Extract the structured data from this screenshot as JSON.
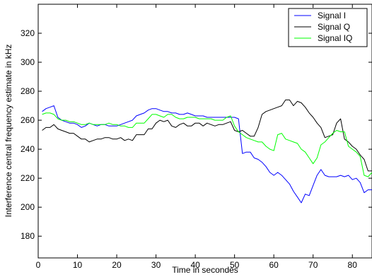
{
  "chart_data": {
    "type": "line",
    "title": "",
    "xlabel": "Time in secondes",
    "ylabel": "Interference central frequency estimate in kHz",
    "xlim": [
      0,
      85
    ],
    "ylim": [
      165,
      340
    ],
    "xticks": [
      0,
      10,
      20,
      30,
      40,
      50,
      60,
      70,
      80
    ],
    "yticks": [
      180,
      200,
      220,
      240,
      260,
      280,
      300,
      320
    ],
    "grid": false,
    "legend_position": "top-right",
    "series": [
      {
        "name": "Signal I",
        "color": "#0000ff",
        "x": [
          1,
          2,
          3,
          4,
          5,
          6,
          7,
          8,
          9,
          10,
          11,
          12,
          13,
          14,
          15,
          16,
          17,
          18,
          19,
          20,
          21,
          22,
          23,
          24,
          25,
          26,
          27,
          28,
          29,
          30,
          31,
          32,
          33,
          34,
          35,
          36,
          37,
          38,
          39,
          40,
          41,
          42,
          43,
          44,
          45,
          46,
          47,
          48,
          49,
          50,
          51,
          52,
          53,
          54,
          55,
          56,
          57,
          58,
          59,
          60,
          61,
          62,
          63,
          64,
          65,
          66,
          67,
          68,
          69,
          70,
          71,
          72,
          73,
          74,
          75,
          76,
          77,
          78,
          79,
          80,
          81,
          82,
          83,
          84,
          85
        ],
        "y": [
          266,
          268,
          269,
          270,
          262,
          260,
          259,
          258,
          258,
          257,
          255,
          256,
          258,
          257,
          256,
          257,
          257,
          256,
          256,
          256,
          257,
          258,
          259,
          260,
          263,
          264,
          265,
          267,
          268,
          268,
          267,
          266,
          266,
          265,
          265,
          264,
          264,
          265,
          264,
          263,
          263,
          263,
          262,
          262,
          262,
          262,
          262,
          262,
          262,
          262,
          261,
          237,
          238,
          238,
          234,
          233,
          231,
          228,
          224,
          222,
          224,
          222,
          219,
          216,
          211,
          207,
          203,
          209,
          208,
          215,
          222,
          226,
          222,
          221,
          221,
          221,
          222,
          221,
          222,
          219,
          220,
          217,
          210,
          212,
          212
        ]
      },
      {
        "name": "Signal Q",
        "color": "#000000",
        "x": [
          1,
          2,
          3,
          4,
          5,
          6,
          7,
          8,
          9,
          10,
          11,
          12,
          13,
          14,
          15,
          16,
          17,
          18,
          19,
          20,
          21,
          22,
          23,
          24,
          25,
          26,
          27,
          28,
          29,
          30,
          31,
          32,
          33,
          34,
          35,
          36,
          37,
          38,
          39,
          40,
          41,
          42,
          43,
          44,
          45,
          46,
          47,
          48,
          49,
          50,
          51,
          52,
          53,
          54,
          55,
          56,
          57,
          58,
          59,
          60,
          61,
          62,
          63,
          64,
          65,
          66,
          67,
          68,
          69,
          70,
          71,
          72,
          73,
          74,
          75,
          76,
          77,
          78,
          79,
          80,
          81,
          82,
          83,
          84,
          85
        ],
        "y": [
          253,
          255,
          255,
          257,
          254,
          253,
          252,
          251,
          251,
          249,
          247,
          247,
          245,
          246,
          247,
          247,
          248,
          248,
          247,
          247,
          248,
          246,
          247,
          246,
          250,
          250,
          250,
          254,
          254,
          258,
          260,
          259,
          260,
          256,
          255,
          257,
          258,
          256,
          256,
          258,
          258,
          256,
          258,
          257,
          256,
          257,
          257,
          258,
          259,
          253,
          252,
          253,
          251,
          249,
          249,
          255,
          264,
          266,
          267,
          268,
          269,
          270,
          274,
          274,
          270,
          273,
          272,
          269,
          265,
          262,
          258,
          255,
          248,
          249,
          250,
          258,
          261,
          247,
          245,
          242,
          240,
          236,
          233,
          225,
          225
        ]
      },
      {
        "name": "Signal IQ",
        "color": "#00ff00",
        "x": [
          1,
          2,
          3,
          4,
          5,
          6,
          7,
          8,
          9,
          10,
          11,
          12,
          13,
          14,
          15,
          16,
          17,
          18,
          19,
          20,
          21,
          22,
          23,
          24,
          25,
          26,
          27,
          28,
          29,
          30,
          31,
          32,
          33,
          34,
          35,
          36,
          37,
          38,
          39,
          40,
          41,
          42,
          43,
          44,
          45,
          46,
          47,
          48,
          49,
          50,
          51,
          52,
          53,
          54,
          55,
          56,
          57,
          58,
          59,
          60,
          61,
          62,
          63,
          64,
          65,
          66,
          67,
          68,
          69,
          70,
          71,
          72,
          73,
          74,
          75,
          76,
          77,
          78,
          79,
          80,
          81,
          82,
          83,
          84,
          85
        ],
        "y": [
          264,
          265,
          265,
          264,
          261,
          260,
          260,
          259,
          259,
          258,
          257,
          257,
          258,
          257,
          257,
          257,
          257,
          258,
          257,
          257,
          256,
          256,
          255,
          255,
          258,
          258,
          258,
          261,
          264,
          264,
          263,
          262,
          264,
          264,
          262,
          261,
          261,
          262,
          262,
          262,
          261,
          261,
          261,
          261,
          260,
          260,
          260,
          262,
          263,
          256,
          252,
          250,
          248,
          247,
          246,
          245,
          245,
          242,
          240,
          239,
          250,
          251,
          247,
          246,
          245,
          244,
          240,
          238,
          234,
          230,
          234,
          243,
          245,
          248,
          251,
          253,
          252,
          252,
          242,
          240,
          238,
          235,
          222,
          221,
          224
        ]
      }
    ]
  }
}
